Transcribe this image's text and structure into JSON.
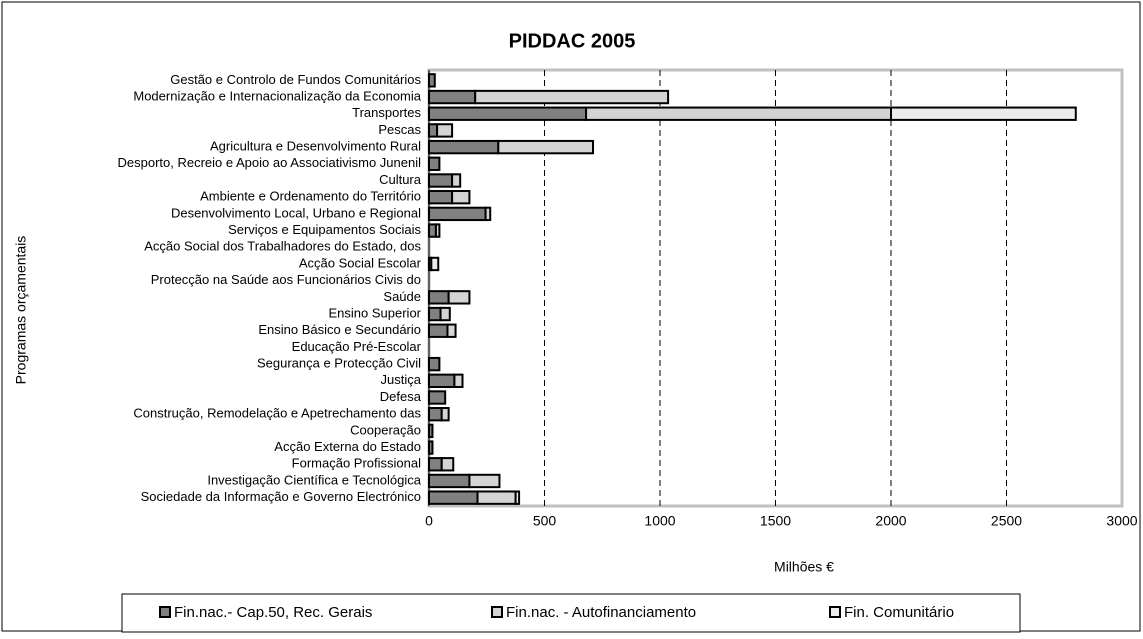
{
  "chart_data": {
    "type": "bar",
    "orientation": "horizontal",
    "stacked": true,
    "title": "PIDDAC 2005",
    "x_label": "Milhões €",
    "y_label": "Programas orçamentais",
    "categories": [
      "Gestão e Controlo de Fundos Comunitários",
      "Modernização e Internacionalização da Economia",
      "Transportes",
      "Pescas",
      "Agricultura e Desenvolvimento Rural",
      "Desporto, Recreio e Apoio ao Associativismo Junenil",
      "Cultura",
      "Ambiente e Ordenamento do Território",
      "Desenvolvimento Local, Urbano e Regional",
      "Serviços e Equipamentos Sociais",
      "Acção Social dos Trabalhadores do Estado, dos",
      "Acção Social Escolar",
      "Protecção na Saúde aos Funcionários Civis do",
      "Saúde",
      "Ensino Superior",
      "Ensino Básico e Secundário",
      "Educação Pré-Escolar",
      "Segurança e Protecção Civil",
      "Justiça",
      "Defesa",
      "Construção, Remodelação e Apetrechamento das",
      "Cooperação",
      "Acção Externa do Estado",
      "Formação Profissional",
      "Investigação Científica e Tecnológica",
      "Sociedade da Informação e Governo Electrónico"
    ],
    "series": [
      {
        "name": "Fin.nac.- Cap.50, Rec. Gerais",
        "color": "#808080",
        "values": [
          25,
          200,
          680,
          35,
          300,
          45,
          100,
          100,
          245,
          30,
          0,
          10,
          0,
          85,
          50,
          80,
          0,
          45,
          110,
          70,
          55,
          15,
          15,
          55,
          175,
          210
        ]
      },
      {
        "name": "Fin.nac. - Autofinanciamento",
        "color": "#d4d4d4",
        "values": [
          0,
          835,
          1320,
          65,
          410,
          0,
          35,
          75,
          20,
          15,
          0,
          0,
          0,
          90,
          40,
          35,
          0,
          0,
          35,
          0,
          30,
          0,
          0,
          50,
          130,
          165
        ]
      },
      {
        "name": "Fin. Comunitário",
        "color": "#ececec",
        "values": [
          0,
          0,
          800,
          0,
          0,
          0,
          0,
          0,
          0,
          0,
          0,
          30,
          0,
          0,
          0,
          0,
          0,
          0,
          0,
          0,
          0,
          0,
          0,
          0,
          0,
          15
        ]
      }
    ],
    "xlim": [
      0,
      3000
    ],
    "xticks": [
      0,
      500,
      1000,
      1500,
      2000,
      2500,
      3000
    ],
    "grid": true,
    "legend": "bottom"
  }
}
